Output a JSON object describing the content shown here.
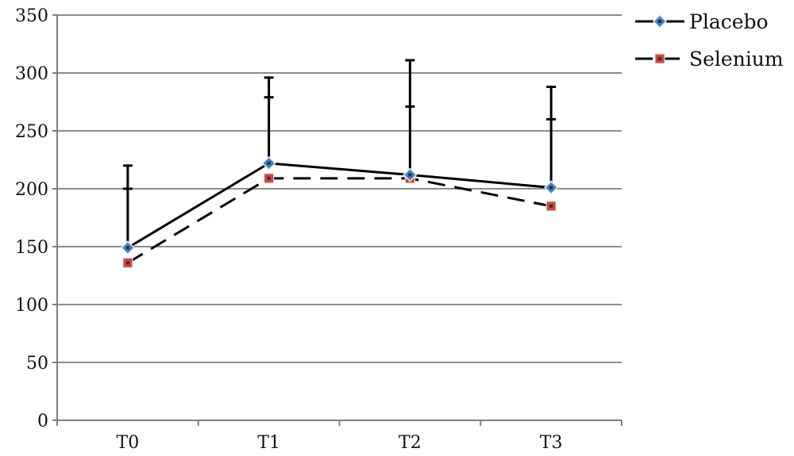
{
  "chart_data": {
    "type": "line",
    "categories": [
      "T0",
      "T1",
      "T2",
      "T3"
    ],
    "ylim": [
      0,
      350
    ],
    "y_ticks": [
      "0",
      "50",
      "100",
      "150",
      "200",
      "250",
      "300",
      "350"
    ],
    "grid": true,
    "legend_position": "top-right",
    "series": [
      {
        "name": "Placebo",
        "values": [
          149,
          222,
          212,
          201
        ],
        "error_upper": [
          220,
          296,
          311,
          288
        ],
        "error_upper_caps": [
          200,
          279,
          271,
          260
        ],
        "line_style": "solid",
        "marker": "diamond",
        "marker_color": "#4a7ebb"
      },
      {
        "name": "Selenium",
        "values": [
          136,
          209,
          209,
          185
        ],
        "line_style": "dashed",
        "marker": "square",
        "marker_color": "#be4b48"
      }
    ]
  }
}
